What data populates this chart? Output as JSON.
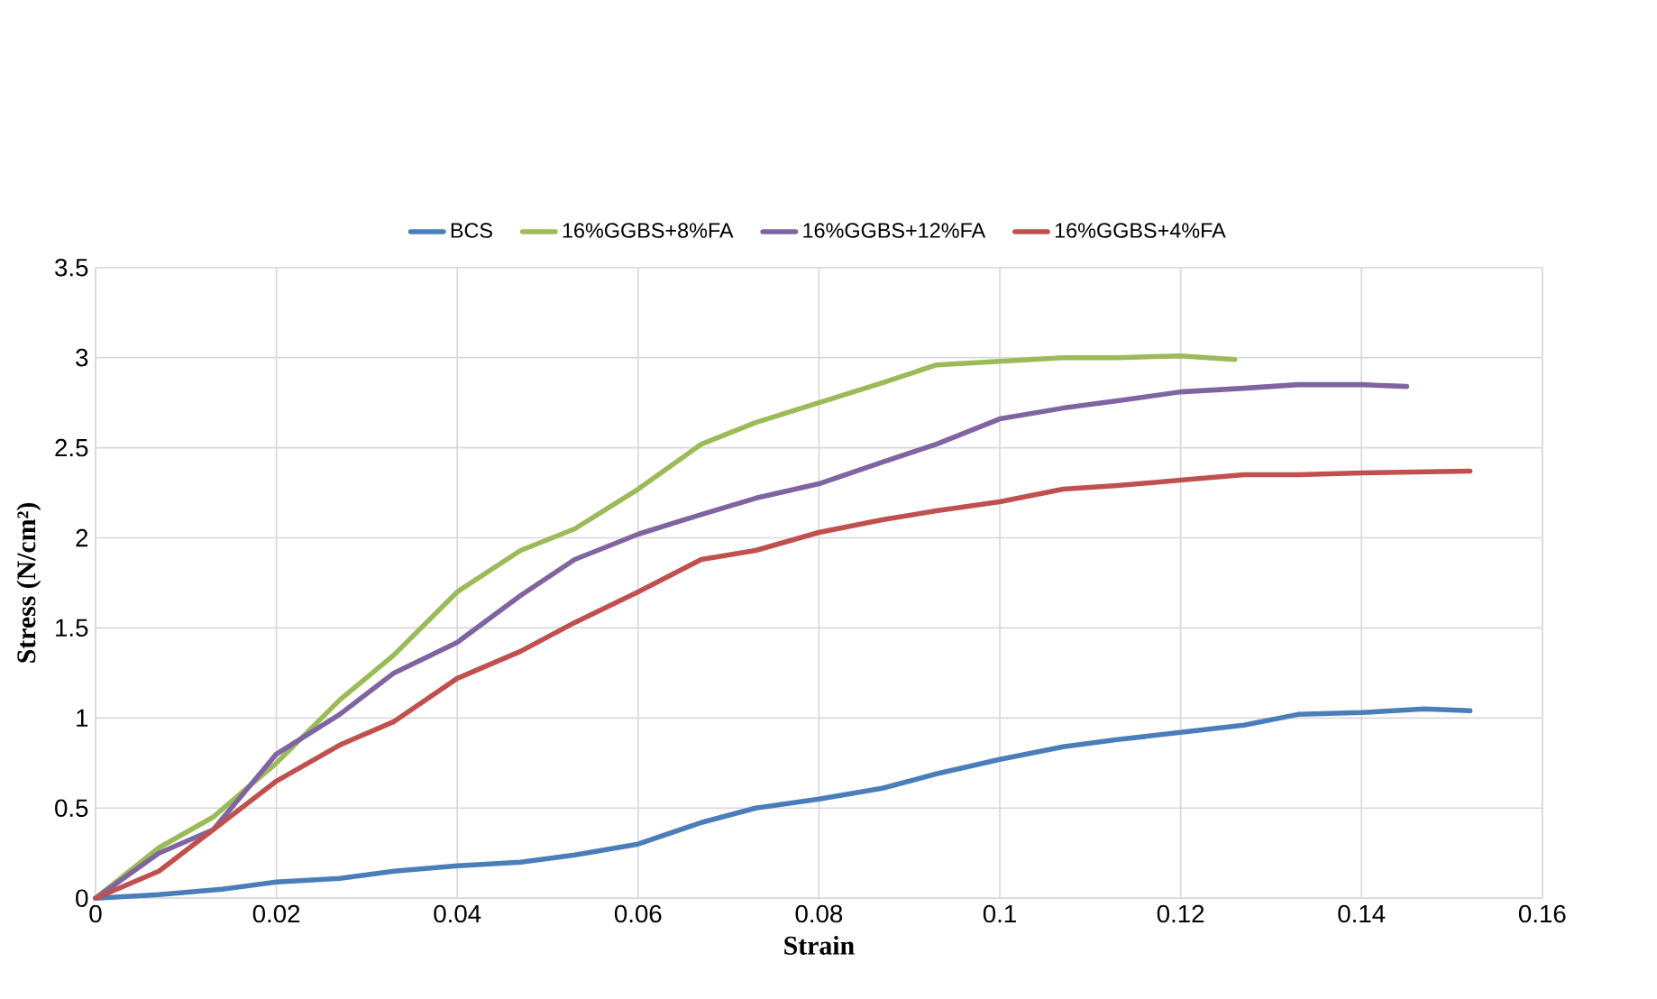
{
  "chart_data": {
    "type": "line",
    "xlabel": "Strain",
    "ylabel": "Stress (N/cm²)",
    "xlim": [
      0,
      0.16
    ],
    "ylim": [
      0,
      3.5
    ],
    "xticks": [
      0,
      0.02,
      0.04,
      0.06,
      0.08,
      0.1,
      0.12,
      0.14,
      0.16
    ],
    "yticks": [
      0,
      0.5,
      1,
      1.5,
      2,
      2.5,
      3,
      3.5
    ],
    "grid": true,
    "legend": "top",
    "marker": "none",
    "line_style": "solid",
    "series": [
      {
        "name": "BCS",
        "color": "#4a7ebb",
        "x": [
          0,
          0.007,
          0.014,
          0.02,
          0.027,
          0.033,
          0.04,
          0.047,
          0.053,
          0.06,
          0.067,
          0.073,
          0.08,
          0.087,
          0.093,
          0.1,
          0.107,
          0.113,
          0.12,
          0.127,
          0.133,
          0.14,
          0.147,
          0.152
        ],
        "values": [
          0,
          0.02,
          0.05,
          0.09,
          0.11,
          0.15,
          0.18,
          0.2,
          0.24,
          0.3,
          0.42,
          0.5,
          0.55,
          0.61,
          0.69,
          0.77,
          0.84,
          0.88,
          0.92,
          0.96,
          1.02,
          1.03,
          1.05,
          1.04
        ]
      },
      {
        "name": "16%GGBS+8%FA",
        "color": "#9bbb59",
        "x": [
          0,
          0.007,
          0.013,
          0.02,
          0.027,
          0.033,
          0.04,
          0.047,
          0.053,
          0.06,
          0.067,
          0.073,
          0.08,
          0.087,
          0.093,
          0.1,
          0.107,
          0.113,
          0.12,
          0.126
        ],
        "values": [
          0,
          0.28,
          0.45,
          0.75,
          1.1,
          1.35,
          1.7,
          1.93,
          2.05,
          2.27,
          2.52,
          2.64,
          2.75,
          2.86,
          2.96,
          2.98,
          3.0,
          3.0,
          3.01,
          2.99
        ]
      },
      {
        "name": "16%GGBS+12%FA",
        "color": "#8064a2",
        "x": [
          0,
          0.007,
          0.013,
          0.02,
          0.027,
          0.033,
          0.04,
          0.047,
          0.053,
          0.06,
          0.067,
          0.073,
          0.08,
          0.087,
          0.093,
          0.1,
          0.107,
          0.113,
          0.12,
          0.127,
          0.133,
          0.14,
          0.145
        ],
        "values": [
          0,
          0.25,
          0.38,
          0.8,
          1.02,
          1.25,
          1.42,
          1.68,
          1.88,
          2.02,
          2.13,
          2.22,
          2.3,
          2.42,
          2.52,
          2.66,
          2.72,
          2.76,
          2.81,
          2.83,
          2.85,
          2.85,
          2.84
        ]
      },
      {
        "name": "16%GGBS+4%FA",
        "color": "#c0504d",
        "x": [
          0,
          0.007,
          0.013,
          0.02,
          0.027,
          0.033,
          0.04,
          0.047,
          0.053,
          0.06,
          0.067,
          0.073,
          0.08,
          0.087,
          0.093,
          0.1,
          0.107,
          0.113,
          0.12,
          0.127,
          0.133,
          0.14,
          0.152
        ],
        "values": [
          0,
          0.15,
          0.38,
          0.65,
          0.85,
          0.98,
          1.22,
          1.37,
          1.53,
          1.7,
          1.88,
          1.93,
          2.03,
          2.1,
          2.15,
          2.2,
          2.27,
          2.29,
          2.32,
          2.35,
          2.35,
          2.36,
          2.37
        ]
      }
    ]
  }
}
